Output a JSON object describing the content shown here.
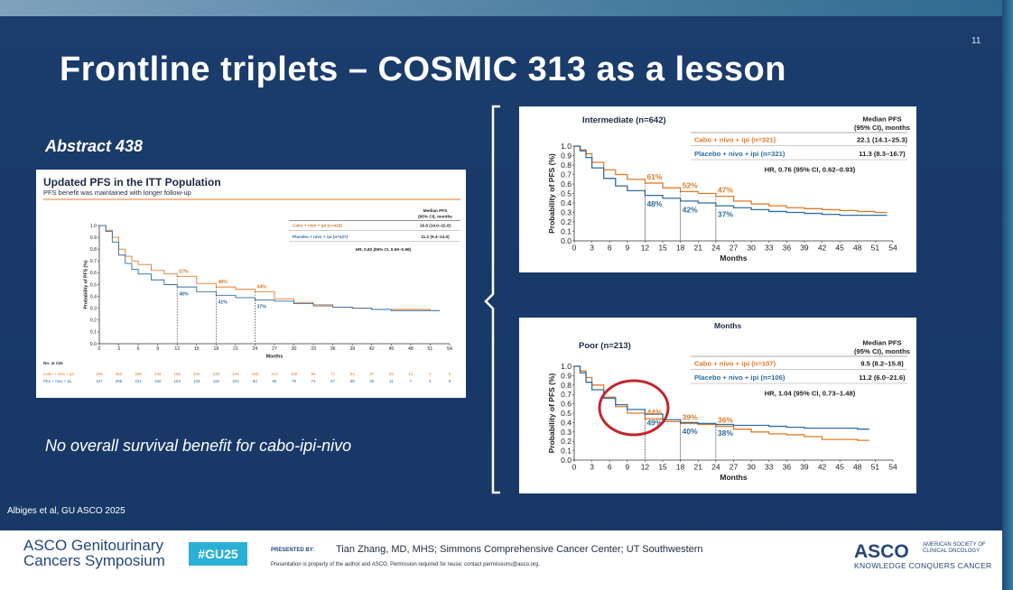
{
  "slide": {
    "title": "Frontline triplets – COSMIC 313 as a lesson",
    "slide_number": "11",
    "abstract": "Abstract 438",
    "conclusion": "No overall survival benefit for cabo-ipi-nivo",
    "citation": "Albiges et al, GU ASCO 2025",
    "colors": {
      "background": "#1b3d6c",
      "cabo": "#e07b2a",
      "placebo": "#2e6da4",
      "circle": "#c0262c"
    }
  },
  "footer": {
    "meeting_line1": "ASCO Genitourinary",
    "meeting_line2": "Cancers Symposium",
    "hashtag": "#GU25",
    "presented_by": "PRESENTED BY:",
    "presenter": "Tian Zhang, MD, MHS; Simmons Comprehensive Cancer Center; UT Southwestern",
    "property_note": "Presentation is property of the author and ASCO. Permission required for reuse; contact permissions@asco.org.",
    "asco_logo": "ASCO",
    "asco_society": "AMERICAN SOCIETY OF CLINICAL ONCOLOGY",
    "asco_tagline": "KNOWLEDGE CONQUERS CANCER"
  },
  "chart_data": [
    {
      "type": "line",
      "title": "Updated PFS in the ITT Population",
      "subtitle": "PFS benefit was maintained with longer follow-up",
      "xlabel": "Months",
      "ylabel": "Probability of PFS (%)",
      "xlim": [
        0,
        54
      ],
      "ylim": [
        0,
        1.0
      ],
      "xticks": [
        "0",
        "3",
        "6",
        "9",
        "12",
        "15",
        "18",
        "21",
        "24",
        "27",
        "30",
        "33",
        "36",
        "39",
        "42",
        "45",
        "48",
        "51",
        "54"
      ],
      "yticks": [
        "0.0",
        "0.1",
        "0.2",
        "0.3",
        "0.4",
        "0.5",
        "0.6",
        "0.7",
        "0.8",
        "0.9",
        "1.0"
      ],
      "legend_header": "Median PFS (95% CI), months",
      "series": [
        {
          "name": "Cabo + nivo + ipi (n=428)",
          "median": "16.6 (14.0–22.6)",
          "color": "#e07b2a",
          "x": [
            0,
            1,
            2,
            3,
            4,
            5,
            6,
            8,
            10,
            12,
            15,
            18,
            21,
            24,
            27,
            30,
            33,
            36,
            39,
            42,
            45,
            48,
            51,
            52.5
          ],
          "y": [
            1.0,
            0.96,
            0.9,
            0.8,
            0.74,
            0.7,
            0.67,
            0.62,
            0.59,
            0.57,
            0.51,
            0.48,
            0.46,
            0.44,
            0.38,
            0.35,
            0.33,
            0.31,
            0.3,
            0.29,
            0.29,
            0.29,
            0.28,
            0.28
          ]
        },
        {
          "name": "Placebo + nivo + ipi (n=427)",
          "median": "11.2 (9.3–14.0)",
          "color": "#2e6da4",
          "x": [
            0,
            1,
            2,
            3,
            4,
            5,
            6,
            8,
            10,
            12,
            15,
            18,
            21,
            24,
            27,
            30,
            33,
            36,
            39,
            42,
            45,
            48,
            51,
            52.5
          ],
          "y": [
            1.0,
            0.95,
            0.86,
            0.75,
            0.68,
            0.63,
            0.59,
            0.54,
            0.5,
            0.48,
            0.44,
            0.41,
            0.39,
            0.37,
            0.36,
            0.34,
            0.32,
            0.31,
            0.3,
            0.29,
            0.28,
            0.28,
            0.28,
            0.28
          ]
        }
      ],
      "hr_text": "HR, 0.82 (95% CI, 0.69–0.98)",
      "annotations": [
        {
          "x": 12,
          "y": 0.57,
          "label": "57%",
          "series": 0
        },
        {
          "x": 18,
          "y": 0.48,
          "label": "48%",
          "series": 0
        },
        {
          "x": 24,
          "y": 0.44,
          "label": "44%",
          "series": 0
        },
        {
          "x": 12,
          "y": 0.48,
          "label": "48%",
          "series": 1
        },
        {
          "x": 18,
          "y": 0.41,
          "label": "41%",
          "series": 1
        },
        {
          "x": 24,
          "y": 0.37,
          "label": "37%",
          "series": 1
        }
      ],
      "at_risk": {
        "header": "No. at risk",
        "rows": [
          {
            "label": "Cabo + nivo + ipi",
            "values": [
              "428",
              "350",
              "269",
              "232",
              "192",
              "162",
              "148",
              "144",
              "126",
              "112",
              "100",
              "84",
              "71",
              "54",
              "37",
              "20",
              "11",
              "2",
              "0"
            ]
          },
          {
            "label": "Pbo + nivo + ipi",
            "values": [
              "427",
              "295",
              "221",
              "192",
              "154",
              "133",
              "119",
              "103",
              "94",
              "85",
              "78",
              "71",
              "67",
              "58",
              "35",
              "11",
              "7",
              "2",
              "0"
            ]
          }
        ]
      }
    },
    {
      "type": "line",
      "title": "Intermediate (n=642)",
      "xlabel": "Months",
      "ylabel": "Probability of PFS (%)",
      "xlim": [
        0,
        54
      ],
      "ylim": [
        0,
        1.0
      ],
      "xticks": [
        "0",
        "3",
        "6",
        "9",
        "12",
        "15",
        "18",
        "21",
        "24",
        "27",
        "30",
        "33",
        "36",
        "39",
        "42",
        "45",
        "48",
        "51",
        "54"
      ],
      "yticks": [
        "0.0",
        "0.1",
        "0.2",
        "0.3",
        "0.4",
        "0.5",
        "0.6",
        "0.7",
        "0.8",
        "0.9",
        "1.0"
      ],
      "legend_header": "Median PFS (95% CI), months",
      "series": [
        {
          "name": "Cabo + nivo + ipi (n=321)",
          "median": "22.1 (14.1–25.3)",
          "color": "#e07b2a",
          "x": [
            0,
            1,
            2,
            3,
            5,
            7,
            9,
            12,
            15,
            18,
            21,
            24,
            27,
            30,
            33,
            36,
            39,
            42,
            45,
            48,
            51,
            53
          ],
          "y": [
            1.0,
            0.96,
            0.92,
            0.83,
            0.75,
            0.7,
            0.65,
            0.61,
            0.56,
            0.52,
            0.5,
            0.47,
            0.42,
            0.39,
            0.37,
            0.35,
            0.34,
            0.33,
            0.32,
            0.31,
            0.3,
            0.3
          ]
        },
        {
          "name": "Placebo + nivo + ipi (n=321)",
          "median": "11.3 (8.3–16.7)",
          "color": "#2e6da4",
          "x": [
            0,
            1,
            2,
            3,
            5,
            7,
            9,
            12,
            15,
            18,
            21,
            24,
            27,
            30,
            33,
            36,
            39,
            42,
            45,
            48,
            51,
            53
          ],
          "y": [
            1.0,
            0.95,
            0.88,
            0.77,
            0.66,
            0.58,
            0.53,
            0.48,
            0.45,
            0.42,
            0.4,
            0.37,
            0.35,
            0.33,
            0.31,
            0.3,
            0.29,
            0.28,
            0.27,
            0.27,
            0.27,
            0.27
          ]
        }
      ],
      "hr_text": "HR, 0.76 (95% CI, 0.62–0.93)",
      "annotations": [
        {
          "x": 12,
          "y": 0.61,
          "label": "61%",
          "series": 0
        },
        {
          "x": 18,
          "y": 0.52,
          "label": "52%",
          "series": 0
        },
        {
          "x": 24,
          "y": 0.47,
          "label": "47%",
          "series": 0
        },
        {
          "x": 12,
          "y": 0.48,
          "label": "48%",
          "series": 1
        },
        {
          "x": 18,
          "y": 0.42,
          "label": "42%",
          "series": 1
        },
        {
          "x": 24,
          "y": 0.37,
          "label": "37%",
          "series": 1
        }
      ]
    },
    {
      "type": "line",
      "title": "Poor (n=213)",
      "header_note": "Months",
      "xlabel": "Months",
      "ylabel": "Probability of PFS (%)",
      "xlim": [
        0,
        54
      ],
      "ylim": [
        0,
        1.0
      ],
      "xticks": [
        "0",
        "3",
        "6",
        "9",
        "12",
        "15",
        "18",
        "21",
        "24",
        "27",
        "30",
        "33",
        "36",
        "39",
        "42",
        "45",
        "48",
        "51",
        "54"
      ],
      "yticks": [
        "0.0",
        "0.1",
        "0.2",
        "0.3",
        "0.4",
        "0.5",
        "0.6",
        "0.7",
        "0.8",
        "0.9",
        "1.0"
      ],
      "legend_header": "Median PFS (95% CI), months",
      "series": [
        {
          "name": "Cabo + nivo + ipi (n=107)",
          "median": "9.5 (8.2–15.8)",
          "color": "#e07b2a",
          "x": [
            0,
            1,
            2,
            3,
            5,
            7,
            9,
            12,
            15,
            18,
            21,
            24,
            27,
            30,
            33,
            36,
            39,
            42,
            45,
            48,
            50
          ],
          "y": [
            1.0,
            0.95,
            0.88,
            0.8,
            0.67,
            0.57,
            0.5,
            0.44,
            0.41,
            0.39,
            0.38,
            0.36,
            0.33,
            0.3,
            0.28,
            0.27,
            0.25,
            0.22,
            0.22,
            0.21,
            0.21
          ]
        },
        {
          "name": "Placebo + nivo + ipi (n=106)",
          "median": "11.2 (6.0–21.6)",
          "color": "#2e6da4",
          "x": [
            0,
            1,
            2,
            3,
            5,
            7,
            9,
            12,
            15,
            18,
            21,
            24,
            27,
            30,
            33,
            36,
            39,
            42,
            45,
            48,
            50
          ],
          "y": [
            1.0,
            0.93,
            0.83,
            0.75,
            0.66,
            0.59,
            0.54,
            0.49,
            0.43,
            0.4,
            0.39,
            0.38,
            0.37,
            0.37,
            0.36,
            0.35,
            0.34,
            0.34,
            0.34,
            0.33,
            0.33
          ]
        }
      ],
      "hr_text": "HR, 1.04 (95% CI, 0.73–1.48)",
      "annotations": [
        {
          "x": 12,
          "y": 0.44,
          "label": "44%",
          "series": 0
        },
        {
          "x": 18,
          "y": 0.39,
          "label": "39%",
          "series": 0
        },
        {
          "x": 24,
          "y": 0.36,
          "label": "36%",
          "series": 0
        },
        {
          "x": 12,
          "y": 0.49,
          "label": "49%",
          "series": 1
        },
        {
          "x": 18,
          "y": 0.4,
          "label": "40%",
          "series": 1
        },
        {
          "x": 24,
          "y": 0.38,
          "label": "38%",
          "series": 1
        }
      ]
    }
  ]
}
